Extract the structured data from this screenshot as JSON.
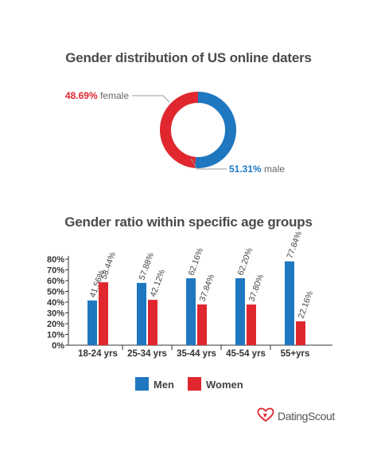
{
  "colors": {
    "men": "#1f77c0",
    "women": "#e0262f",
    "text": "#444444",
    "axis": "#333333"
  },
  "chart_data": [
    {
      "type": "pie",
      "style": "donut",
      "title": "Gender distribution of US online daters",
      "slices": [
        {
          "label": "female",
          "value": 48.69,
          "value_text": "48.69%",
          "color": "#e0262f"
        },
        {
          "label": "male",
          "value": 51.31,
          "value_text": "51.31%",
          "color": "#1f77c0"
        }
      ]
    },
    {
      "type": "bar",
      "title": "Gender ratio within specific age groups",
      "categories": [
        "18-24 yrs",
        "25-34 yrs",
        "35-44 yrs",
        "45-54 yrs",
        "55+yrs"
      ],
      "series": [
        {
          "name": "Men",
          "color": "#1f77c0",
          "values": [
            41.56,
            57.88,
            62.16,
            62.2,
            77.84
          ],
          "labels": [
            "41.56%",
            "57.88%",
            "62.16%",
            "62.20%",
            "77.84%"
          ]
        },
        {
          "name": "Women",
          "color": "#e0262f",
          "values": [
            58.44,
            42.12,
            37.84,
            37.8,
            22.16
          ],
          "labels": [
            "58.44%",
            "42.12%",
            "37.84%",
            "37.80%",
            "22.16%"
          ]
        }
      ],
      "ylim": [
        0,
        80
      ],
      "yticks": [
        "0%",
        "10%",
        "20%",
        "30%",
        "40%",
        "50%",
        "60%",
        "70%",
        "80%"
      ],
      "legend": "bottom"
    }
  ],
  "brand": {
    "name": "DatingScout",
    "icon": "heart-logo-icon"
  }
}
